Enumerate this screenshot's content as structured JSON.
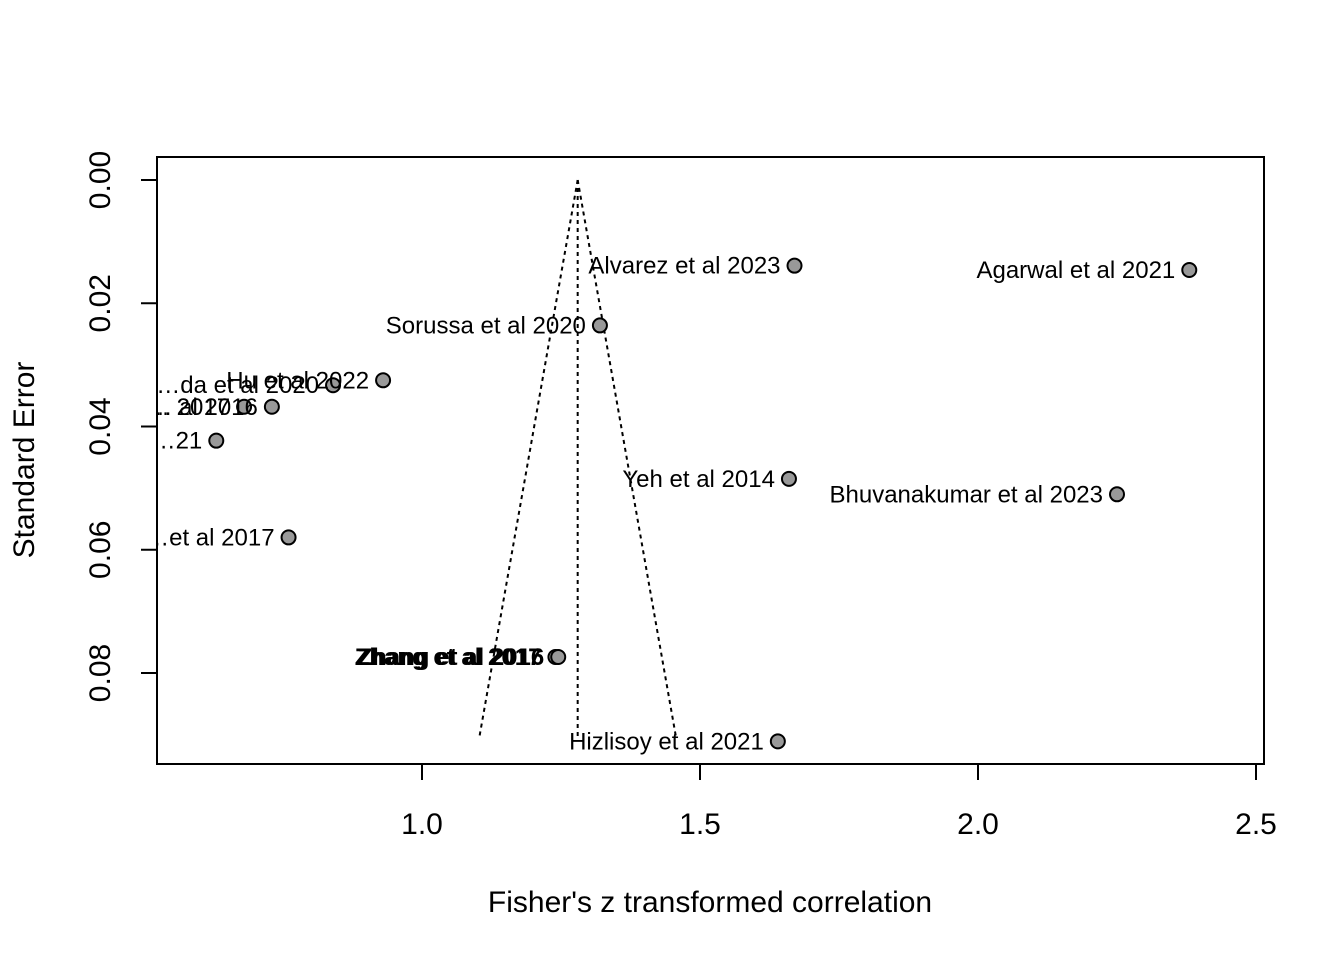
{
  "chart_data": {
    "type": "scatter",
    "title": "",
    "xlabel": "Fisher's z transformed correlation",
    "ylabel": "Standard Error",
    "xlim": [
      0.52,
      2.51
    ],
    "ylim": [
      0.0,
      0.095
    ],
    "y_reversed": true,
    "xticks": [
      1.0,
      1.5,
      2.0,
      2.5
    ],
    "xtick_labels": [
      "1.0",
      "1.5",
      "2.0",
      "2.5"
    ],
    "yticks": [
      0.0,
      0.02,
      0.04,
      0.06,
      0.08
    ],
    "ytick_labels": [
      "0.00",
      "0.02",
      "0.04",
      "0.06",
      "0.08"
    ],
    "grid": false,
    "funnel": {
      "center": 1.28,
      "se_max": 0.0905,
      "left_at_max": 1.103,
      "right_at_max": 1.457
    },
    "point_color": "#999999",
    "points": [
      {
        "label": "Alvarez et al 2023",
        "x": 1.67,
        "y": 0.0139
      },
      {
        "label": "Agarwal et al 2021",
        "x": 2.38,
        "y": 0.0146
      },
      {
        "label": "Sorussa et al 2020",
        "x": 1.32,
        "y": 0.0236
      },
      {
        "label": "Hu et al 2022",
        "x": 0.93,
        "y": 0.0325
      },
      {
        "label": "…da et al 2020",
        "x": 0.84,
        "y": 0.0333
      },
      {
        "label": "… al 2016",
        "x": 0.73,
        "y": 0.0368
      },
      {
        "label": "… 2017",
        "x": 0.68,
        "y": 0.0368
      },
      {
        "label": "…21",
        "x": 0.63,
        "y": 0.0423
      },
      {
        "label": "Yeh et al 2014",
        "x": 1.66,
        "y": 0.0485
      },
      {
        "label": "Bhuvanakumar et al 2023",
        "x": 2.25,
        "y": 0.051
      },
      {
        "label": "…et al 2017",
        "x": 0.76,
        "y": 0.058
      },
      {
        "label": "Zhang et al 2017",
        "x": 1.24,
        "y": 0.0774
      },
      {
        "label": "Zhang et al 2016",
        "x": 1.245,
        "y": 0.0774
      },
      {
        "label": "Hizlisoy et al 2021",
        "x": 1.64,
        "y": 0.0911
      }
    ]
  }
}
